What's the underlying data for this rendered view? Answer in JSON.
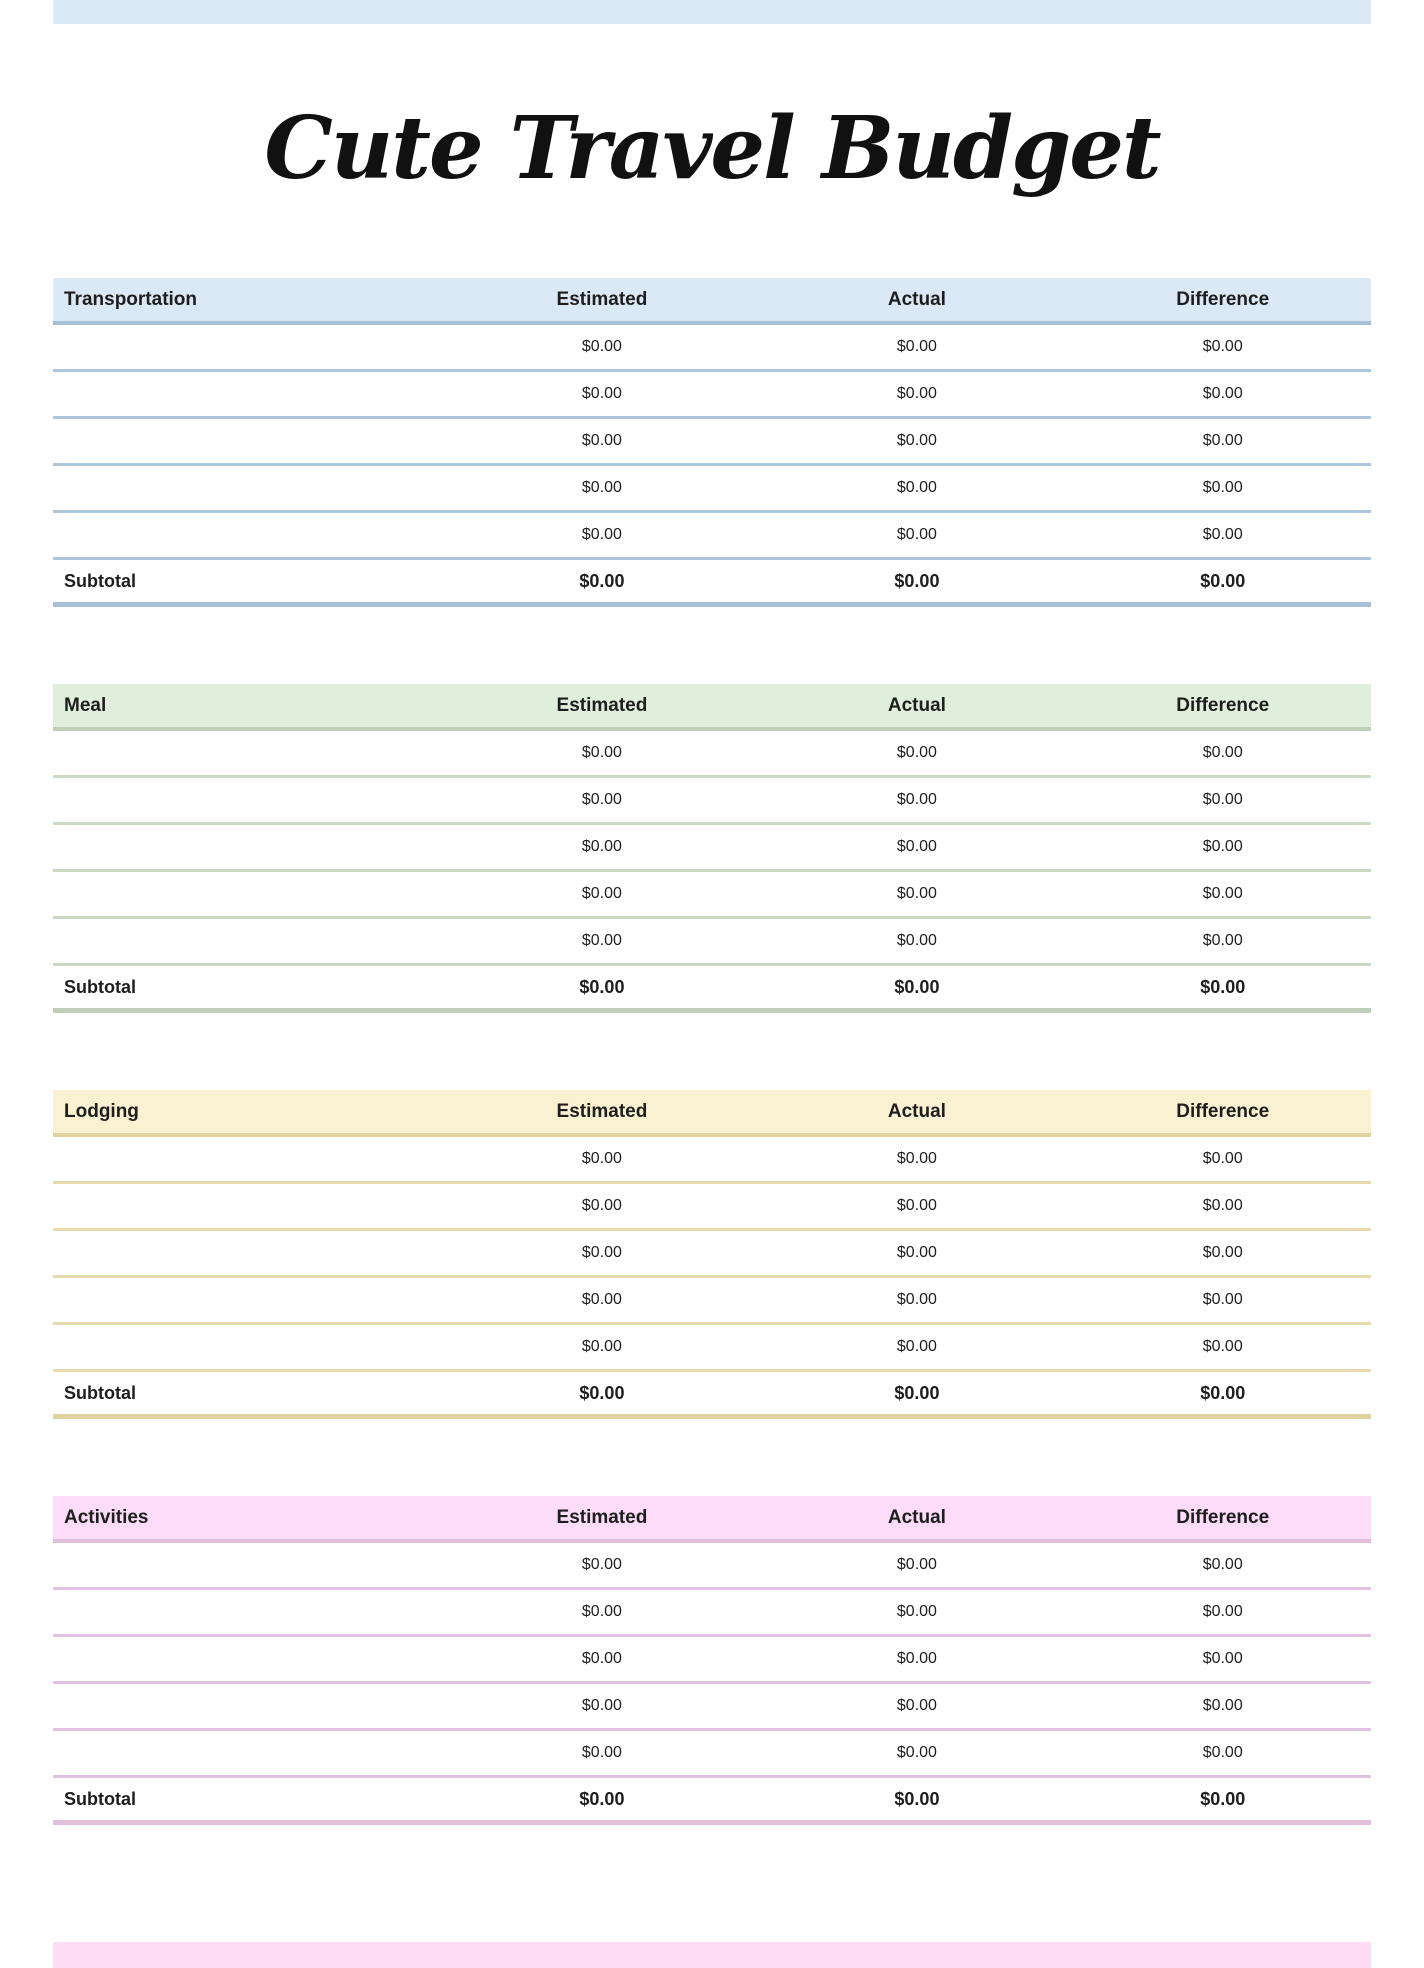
{
  "title": "Cute Travel Budget",
  "accents": {
    "top_bar_color": "#dbe9f7",
    "bottom_bar_color": "#ffdcf6",
    "text_color": "#1e1e1e"
  },
  "table": {
    "value_columns": [
      "Estimated",
      "Actual",
      "Difference"
    ],
    "subtotal_label": "Subtotal",
    "empty_value": "$0.00"
  },
  "sections": [
    {
      "name": "Transportation",
      "header_bg": "#dbe9f7",
      "border_color": "#a6c0d8",
      "separator_color": "#adc6db",
      "rows": [
        [
          "$0.00",
          "$0.00",
          "$0.00"
        ],
        [
          "$0.00",
          "$0.00",
          "$0.00"
        ],
        [
          "$0.00",
          "$0.00",
          "$0.00"
        ],
        [
          "$0.00",
          "$0.00",
          "$0.00"
        ],
        [
          "$0.00",
          "$0.00",
          "$0.00"
        ]
      ],
      "subtotal": [
        "$0.00",
        "$0.00",
        "$0.00"
      ]
    },
    {
      "name": "Meal",
      "header_bg": "#e0efdb",
      "border_color": "#bfcfb9",
      "separator_color": "#cbd9c4",
      "rows": [
        [
          "$0.00",
          "$0.00",
          "$0.00"
        ],
        [
          "$0.00",
          "$0.00",
          "$0.00"
        ],
        [
          "$0.00",
          "$0.00",
          "$0.00"
        ],
        [
          "$0.00",
          "$0.00",
          "$0.00"
        ],
        [
          "$0.00",
          "$0.00",
          "$0.00"
        ]
      ],
      "subtotal": [
        "$0.00",
        "$0.00",
        "$0.00"
      ]
    },
    {
      "name": "Lodging",
      "header_bg": "#faf0d2",
      "border_color": "#e0d3a0",
      "separator_color": "#e6d9ab",
      "rows": [
        [
          "$0.00",
          "$0.00",
          "$0.00"
        ],
        [
          "$0.00",
          "$0.00",
          "$0.00"
        ],
        [
          "$0.00",
          "$0.00",
          "$0.00"
        ],
        [
          "$0.00",
          "$0.00",
          "$0.00"
        ],
        [
          "$0.00",
          "$0.00",
          "$0.00"
        ]
      ],
      "subtotal": [
        "$0.00",
        "$0.00",
        "$0.00"
      ]
    },
    {
      "name": "Activities",
      "header_bg": "#fcdcf8",
      "border_color": "#e2bfdd",
      "separator_color": "#dfc2e2",
      "rows": [
        [
          "$0.00",
          "$0.00",
          "$0.00"
        ],
        [
          "$0.00",
          "$0.00",
          "$0.00"
        ],
        [
          "$0.00",
          "$0.00",
          "$0.00"
        ],
        [
          "$0.00",
          "$0.00",
          "$0.00"
        ],
        [
          "$0.00",
          "$0.00",
          "$0.00"
        ]
      ],
      "subtotal": [
        "$0.00",
        "$0.00",
        "$0.00"
      ]
    }
  ]
}
